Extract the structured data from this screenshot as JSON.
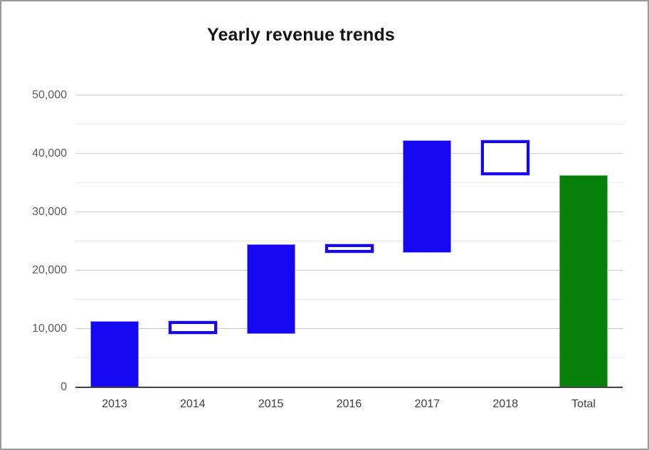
{
  "window": {
    "border_color": "#9a9a9a",
    "background": "#ffffff"
  },
  "chart_data": {
    "type": "waterfall",
    "title": "Yearly revenue trends",
    "categories": [
      "2013",
      "2014",
      "2015",
      "2016",
      "2017",
      "2018",
      "Total"
    ],
    "bars": [
      {
        "label": "2013",
        "kind": "increase",
        "start": 0,
        "end": 11300,
        "change": 11300
      },
      {
        "label": "2014",
        "kind": "decrease",
        "start": 11300,
        "end": 9200,
        "change": -2100
      },
      {
        "label": "2015",
        "kind": "increase",
        "start": 9200,
        "end": 24500,
        "change": 15300
      },
      {
        "label": "2016",
        "kind": "decrease",
        "start": 24500,
        "end": 23000,
        "change": -1500
      },
      {
        "label": "2017",
        "kind": "increase",
        "start": 23000,
        "end": 42300,
        "change": 19300
      },
      {
        "label": "2018",
        "kind": "decrease",
        "start": 42300,
        "end": 36400,
        "change": -5900
      },
      {
        "label": "Total",
        "kind": "total",
        "start": 0,
        "end": 36400,
        "change": 36400
      }
    ],
    "xlabel": "",
    "ylabel": "",
    "ylim": [
      0,
      50000
    ],
    "y_ticks": [
      0,
      10000,
      20000,
      30000,
      40000,
      50000
    ],
    "y_tick_labels": [
      "0",
      "10,000",
      "20,000",
      "30,000",
      "40,000",
      "50,000"
    ],
    "minor_grid_step": 5000,
    "grid": "on",
    "legend": "none",
    "colors": {
      "increase_fill": "#1507f0",
      "increase_border": "#8a85fa",
      "decrease_border": "#1507f0",
      "decrease_fill": "#ffffff",
      "total_fill": "#068008",
      "total_border": "#7db97d",
      "major_grid": "#cccccc",
      "minor_grid": "#ebebeb",
      "axis_line": "#424242",
      "y_label_color": "#5b5b5b",
      "x_label_color": "#3d3d3d",
      "title_color": "#141414"
    }
  }
}
